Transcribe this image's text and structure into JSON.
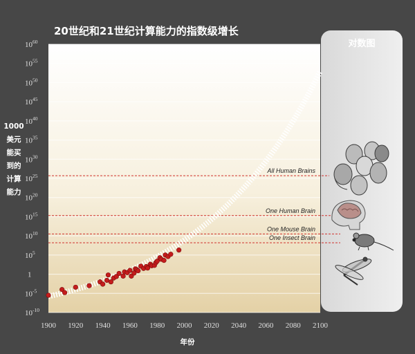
{
  "title": "20世纪和21世纪计算能力的指数级增长",
  "panel_title": "对数图",
  "colors": {
    "background": "#474747",
    "plot_top": "#ffffff",
    "plot_bottom": "#e4d1a6",
    "panel": "#e6e6e6",
    "points": "#c41d1d",
    "trend": "#ffffff",
    "threshold": "#d0312d"
  },
  "panel_icons": [
    "human-heads-icon",
    "human-brain-icon",
    "mouse-icon",
    "insect-icon"
  ],
  "chart_data": {
    "type": "scatter",
    "title": "20世纪和21世纪计算能力的指数级增长",
    "xlabel": "年份",
    "ylabel_lines": [
      "1000",
      "美元",
      "能买",
      "到的",
      "计算",
      "能力"
    ],
    "xlim": [
      1900,
      2100
    ],
    "ylim_exp": [
      -10,
      60
    ],
    "y_scale": "log10",
    "x_ticks": [
      1900,
      1920,
      1940,
      1960,
      1980,
      2000,
      2020,
      2040,
      2060,
      2080,
      2100
    ],
    "y_ticks": [
      {
        "exp": -10,
        "base": "10",
        "sup": "-10"
      },
      {
        "exp": -5,
        "base": "10",
        "sup": "-5"
      },
      {
        "exp": 0,
        "base": "1",
        "sup": ""
      },
      {
        "exp": 5,
        "base": "10",
        "sup": "5"
      },
      {
        "exp": 10,
        "base": "10",
        "sup": "10"
      },
      {
        "exp": 15,
        "base": "10",
        "sup": "15"
      },
      {
        "exp": 20,
        "base": "10",
        "sup": "20"
      },
      {
        "exp": 25,
        "base": "10",
        "sup": "25"
      },
      {
        "exp": 30,
        "base": "10",
        "sup": "30"
      },
      {
        "exp": 35,
        "base": "10",
        "sup": "35"
      },
      {
        "exp": 40,
        "base": "10",
        "sup": "40"
      },
      {
        "exp": 45,
        "base": "10",
        "sup": "45"
      },
      {
        "exp": 50,
        "base": "10",
        "sup": "50"
      },
      {
        "exp": 55,
        "base": "10",
        "sup": "55"
      },
      {
        "exp": 60,
        "base": "10",
        "sup": "60"
      }
    ],
    "grid": true,
    "thresholds": [
      {
        "label": "All Human Brains",
        "exp": 25.7
      },
      {
        "label": "One Human Brain",
        "exp": 15.3
      },
      {
        "label": "One Mouse Brain",
        "exp": 10.5
      },
      {
        "label": "One Insect Brain",
        "exp": 8.2
      }
    ],
    "points": [
      {
        "x": 1900,
        "y_exp": -5.5
      },
      {
        "x": 1910,
        "y_exp": -4.0
      },
      {
        "x": 1912,
        "y_exp": -4.8
      },
      {
        "x": 1920,
        "y_exp": -3.4
      },
      {
        "x": 1930,
        "y_exp": -3.0
      },
      {
        "x": 1938,
        "y_exp": -2.0
      },
      {
        "x": 1940,
        "y_exp": -2.6
      },
      {
        "x": 1943,
        "y_exp": -1.6
      },
      {
        "x": 1944,
        "y_exp": -0.2
      },
      {
        "x": 1946,
        "y_exp": -2.0
      },
      {
        "x": 1948,
        "y_exp": -1.0
      },
      {
        "x": 1950,
        "y_exp": -0.6
      },
      {
        "x": 1952,
        "y_exp": 0.2
      },
      {
        "x": 1955,
        "y_exp": -0.5
      },
      {
        "x": 1956,
        "y_exp": 0.6
      },
      {
        "x": 1958,
        "y_exp": 0.4
      },
      {
        "x": 1960,
        "y_exp": 1.0
      },
      {
        "x": 1961,
        "y_exp": -0.5
      },
      {
        "x": 1963,
        "y_exp": 0.3
      },
      {
        "x": 1964,
        "y_exp": 1.4
      },
      {
        "x": 1965,
        "y_exp": 1.2
      },
      {
        "x": 1966,
        "y_exp": 0.9
      },
      {
        "x": 1968,
        "y_exp": 2.1
      },
      {
        "x": 1970,
        "y_exp": 1.5
      },
      {
        "x": 1972,
        "y_exp": 2.0
      },
      {
        "x": 1973,
        "y_exp": 1.6
      },
      {
        "x": 1975,
        "y_exp": 2.6
      },
      {
        "x": 1976,
        "y_exp": 2.2
      },
      {
        "x": 1978,
        "y_exp": 2.3
      },
      {
        "x": 1979,
        "y_exp": 3.0
      },
      {
        "x": 1980,
        "y_exp": 3.4
      },
      {
        "x": 1982,
        "y_exp": 4.3
      },
      {
        "x": 1983,
        "y_exp": 3.9
      },
      {
        "x": 1985,
        "y_exp": 3.6
      },
      {
        "x": 1986,
        "y_exp": 5.0
      },
      {
        "x": 1988,
        "y_exp": 4.6
      },
      {
        "x": 1990,
        "y_exp": 5.2
      },
      {
        "x": 1996,
        "y_exp": 6.3
      }
    ],
    "trend": {
      "x_start": 1900,
      "x_end": 2100,
      "y_exp_start": -5.8,
      "y_exp_end": 53
    }
  }
}
